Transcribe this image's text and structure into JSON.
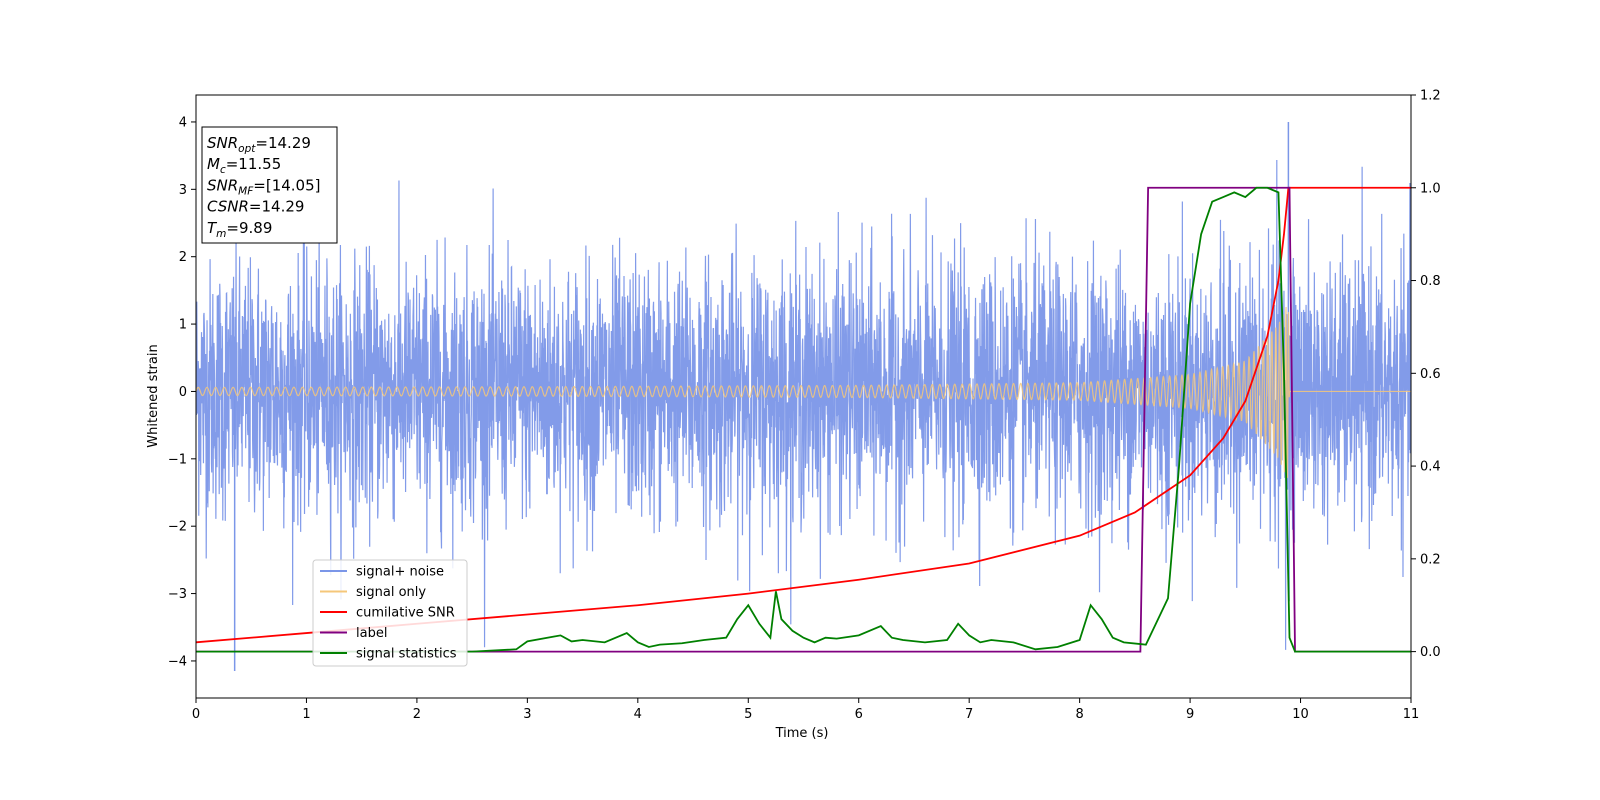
{
  "chart_data": {
    "type": "line",
    "xlabel": "Time (s)",
    "ylabel": "Whitened strain",
    "xlim": [
      0,
      11
    ],
    "ylim_left": [
      -4.55,
      4.4
    ],
    "ylim_right": [
      -0.1,
      1.2
    ],
    "x_ticks": [
      "0",
      "1",
      "2",
      "3",
      "4",
      "5",
      "6",
      "7",
      "8",
      "9",
      "10",
      "11"
    ],
    "y_ticks_left": [
      "−4",
      "−3",
      "−2",
      "−1",
      "0",
      "1",
      "2",
      "3",
      "4"
    ],
    "y_ticks_right": [
      "0.0",
      "0.2",
      "0.4",
      "0.6",
      "0.8",
      "1.0",
      "1.2"
    ],
    "legend_position": "lower-left",
    "series": [
      {
        "name": "signal+ noise",
        "color": "#7b96e8",
        "axis": "left",
        "description_values": {
          "typical_band": [
            -1.9,
            2.2
          ],
          "extremes": [
            -4.15,
            4.0
          ],
          "extreme_times": [
            0.35,
            9.89
          ]
        }
      },
      {
        "name": "signal only",
        "color": "#f5c77a",
        "axis": "left",
        "envelope": {
          "t": [
            0,
            3,
            6,
            8,
            9,
            9.5,
            9.8,
            9.89,
            9.9,
            11
          ],
          "amp": [
            0.06,
            0.07,
            0.09,
            0.13,
            0.25,
            0.45,
            1.0,
            1.35,
            0.0,
            0.0
          ]
        }
      },
      {
        "name": "cumilative SNR",
        "color": "#ff0000",
        "axis": "right",
        "x": [
          0,
          1,
          2,
          3,
          4,
          5,
          6,
          7,
          8,
          8.5,
          9,
          9.3,
          9.5,
          9.7,
          9.8,
          9.85,
          9.89,
          9.9,
          11
        ],
        "y": [
          0.02,
          0.04,
          0.06,
          0.08,
          0.1,
          0.125,
          0.155,
          0.19,
          0.25,
          0.3,
          0.38,
          0.46,
          0.54,
          0.68,
          0.8,
          0.9,
          1.0,
          1.0,
          1.0
        ]
      },
      {
        "name": "label",
        "color": "#800080",
        "axis": "right",
        "x": [
          0,
          8.55,
          8.62,
          9.9,
          9.95,
          11
        ],
        "y": [
          0.0,
          0.0,
          1.0,
          1.0,
          0.0,
          0.0
        ]
      },
      {
        "name": "signal statistics",
        "color": "#008000",
        "axis": "right",
        "x": [
          0,
          2.5,
          2.9,
          3.0,
          3.3,
          3.4,
          3.5,
          3.7,
          3.9,
          4.0,
          4.1,
          4.2,
          4.4,
          4.6,
          4.8,
          4.9,
          5.0,
          5.1,
          5.2,
          5.25,
          5.3,
          5.4,
          5.5,
          5.6,
          5.7,
          5.8,
          6.0,
          6.2,
          6.3,
          6.4,
          6.6,
          6.8,
          6.9,
          7.0,
          7.1,
          7.2,
          7.4,
          7.6,
          7.8,
          8.0,
          8.1,
          8.2,
          8.3,
          8.4,
          8.6,
          8.7,
          8.8,
          8.9,
          9.0,
          9.1,
          9.2,
          9.3,
          9.4,
          9.5,
          9.6,
          9.7,
          9.8,
          9.85,
          9.9,
          9.95,
          11
        ],
        "y": [
          0.0,
          0.0,
          0.005,
          0.022,
          0.035,
          0.022,
          0.025,
          0.02,
          0.04,
          0.02,
          0.01,
          0.015,
          0.018,
          0.025,
          0.03,
          0.07,
          0.1,
          0.06,
          0.03,
          0.13,
          0.07,
          0.045,
          0.03,
          0.02,
          0.03,
          0.028,
          0.035,
          0.055,
          0.03,
          0.025,
          0.02,
          0.025,
          0.06,
          0.035,
          0.02,
          0.025,
          0.02,
          0.005,
          0.01,
          0.025,
          0.1,
          0.07,
          0.03,
          0.02,
          0.015,
          0.065,
          0.115,
          0.4,
          0.75,
          0.9,
          0.97,
          0.98,
          0.99,
          0.98,
          1.0,
          1.0,
          0.99,
          0.6,
          0.03,
          0.0,
          0.0
        ]
      }
    ],
    "annotation": {
      "lines": [
        {
          "base": "SNR",
          "sub": "opt",
          "rest": "=14.29"
        },
        {
          "base": "M",
          "sub": "c",
          "rest": "=11.55"
        },
        {
          "base": "SNR",
          "sub": "MF",
          "rest": "=[14.05]"
        },
        {
          "base": "CSNR",
          "sub": "",
          "rest": "=14.29"
        },
        {
          "base": "T",
          "sub": "m",
          "rest": "=9.89"
        }
      ]
    }
  }
}
